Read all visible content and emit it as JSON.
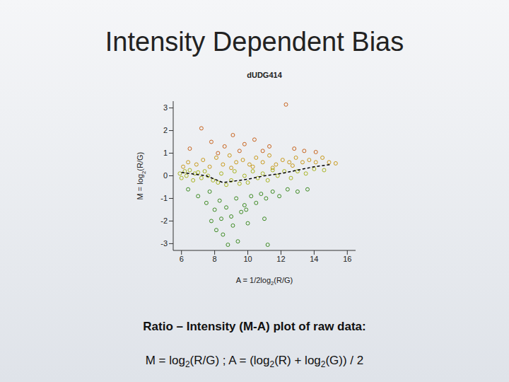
{
  "slide": {
    "title": "Intensity Dependent Bias",
    "caption": "Ratio – Intensity (M-A) plot of raw data:",
    "formula": "M = log2(R/G) ; A = (log2(R) + log2(G)) / 2"
  },
  "chart_data": {
    "type": "scatter",
    "title": "dUDG414",
    "x_label": "A = 1/2log2(R/G)",
    "y_label": "M = log2(R/G)",
    "xlim": [
      5.5,
      16.5
    ],
    "ylim": [
      -3.3,
      3.3
    ],
    "xticks": [
      6,
      8,
      10,
      12,
      14,
      16
    ],
    "yticks": [
      -3,
      -2,
      -1,
      0,
      1,
      2,
      3
    ],
    "marker": "circle",
    "series": [
      {
        "type": "scatter",
        "color": "#c8641e",
        "x": [
          6.5,
          7.2,
          7.8,
          8.2,
          8.6,
          9.1,
          9.8,
          10.4,
          10.9,
          11.3,
          12.3,
          12.8,
          13.4,
          14.1,
          9.5
        ],
        "values": [
          1.2,
          2.1,
          1.5,
          1.0,
          1.3,
          1.8,
          1.4,
          1.6,
          1.1,
          1.3,
          3.15,
          1.2,
          1.1,
          1.05,
          1.1
        ]
      },
      {
        "type": "scatter",
        "color": "#c89a1c",
        "x": [
          6.1,
          6.4,
          6.9,
          7.3,
          7.7,
          8.1,
          8.5,
          8.9,
          9.3,
          9.7,
          10.1,
          10.5,
          10.9,
          11.3,
          11.7,
          12.1,
          12.5,
          12.9,
          13.3,
          13.7,
          14.1,
          14.5,
          14.9,
          15.3,
          9.0,
          10.3,
          11.5,
          12.7
        ],
        "values": [
          0.4,
          0.6,
          0.5,
          0.7,
          0.4,
          0.8,
          0.5,
          0.9,
          0.6,
          0.7,
          0.5,
          0.8,
          0.6,
          0.9,
          0.5,
          0.7,
          0.6,
          0.8,
          0.6,
          0.7,
          0.6,
          0.8,
          0.6,
          0.55,
          0.35,
          0.4,
          0.35,
          0.45
        ]
      },
      {
        "type": "scatter",
        "color": "#a8b420",
        "x": [
          5.9,
          6.0,
          6.2,
          6.3,
          6.5,
          6.7,
          6.8,
          7.0,
          7.2,
          7.4,
          7.6,
          7.9,
          8.2,
          8.4,
          8.7,
          9.0,
          9.2,
          9.5,
          9.8,
          10.0,
          10.3,
          10.6,
          10.9,
          11.2,
          11.5,
          11.8,
          12.2,
          12.6,
          13.0,
          13.5,
          14.0,
          14.6
        ],
        "values": [
          0.1,
          -0.1,
          0.2,
          0.0,
          0.25,
          -0.2,
          0.1,
          0.15,
          -0.1,
          0.2,
          0.0,
          -0.2,
          -0.3,
          0.1,
          -0.4,
          -0.2,
          0.2,
          -0.35,
          0.0,
          -0.3,
          0.2,
          -0.1,
          0.1,
          -0.2,
          0.25,
          0.0,
          0.2,
          -0.1,
          0.2,
          0.1,
          0.3,
          0.25
        ]
      },
      {
        "type": "scatter",
        "color": "#3d8a22",
        "x": [
          6.4,
          7.0,
          7.5,
          7.8,
          8.0,
          8.1,
          8.3,
          8.4,
          8.5,
          8.7,
          8.8,
          9.0,
          9.1,
          9.3,
          9.4,
          9.6,
          9.8,
          10.0,
          10.2,
          10.5,
          10.8,
          11.1,
          11.5,
          11.9,
          12.4,
          13.0,
          13.6,
          7.7,
          9.9,
          11.0,
          11.2
        ],
        "values": [
          -0.6,
          -0.9,
          -1.2,
          -2.0,
          -1.5,
          -2.4,
          -1.1,
          -1.9,
          -2.6,
          -1.4,
          -3.05,
          -1.8,
          -2.2,
          -1.0,
          -2.9,
          -1.6,
          -1.3,
          -2.1,
          -0.9,
          -1.2,
          -0.8,
          -1.0,
          -0.7,
          -0.9,
          -0.6,
          -0.7,
          -0.6,
          -0.7,
          -1.5,
          -1.9,
          -3.05
        ]
      },
      {
        "type": "line",
        "color": "#000000",
        "line_style": "dashed",
        "x": [
          6,
          6.5,
          7,
          7.5,
          8,
          8.5,
          9,
          10,
          11,
          12,
          13,
          14,
          15
        ],
        "values": [
          0.15,
          0.1,
          0.05,
          0,
          -0.15,
          -0.3,
          -0.25,
          -0.15,
          0,
          0.1,
          0.25,
          0.4,
          0.5
        ]
      }
    ]
  }
}
